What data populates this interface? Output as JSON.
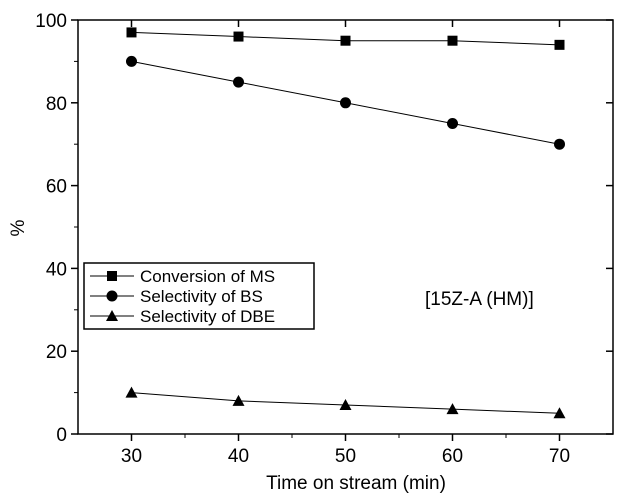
{
  "chart_data": {
    "type": "line",
    "xlabel": "Time on stream (min)",
    "ylabel": "%",
    "xlim": [
      25,
      75
    ],
    "ylim": [
      0,
      100
    ],
    "x_ticks": [
      30,
      40,
      50,
      60,
      70
    ],
    "y_ticks": [
      0,
      20,
      40,
      60,
      80,
      100
    ],
    "grid": false,
    "legend_position": "left",
    "annotation": "[15Z-A (HM)]",
    "x": [
      30,
      40,
      50,
      60,
      70
    ],
    "series": [
      {
        "name": "Conversion of MS",
        "marker": "square",
        "color": "#000000",
        "values": [
          97,
          96,
          95,
          95,
          94
        ]
      },
      {
        "name": "Selectivity of BS",
        "marker": "circle",
        "color": "#000000",
        "values": [
          90,
          85,
          80,
          75,
          70
        ]
      },
      {
        "name": "Selectivity of DBE",
        "marker": "triangle",
        "color": "#000000",
        "values": [
          10,
          8,
          7,
          6,
          5
        ]
      }
    ]
  }
}
